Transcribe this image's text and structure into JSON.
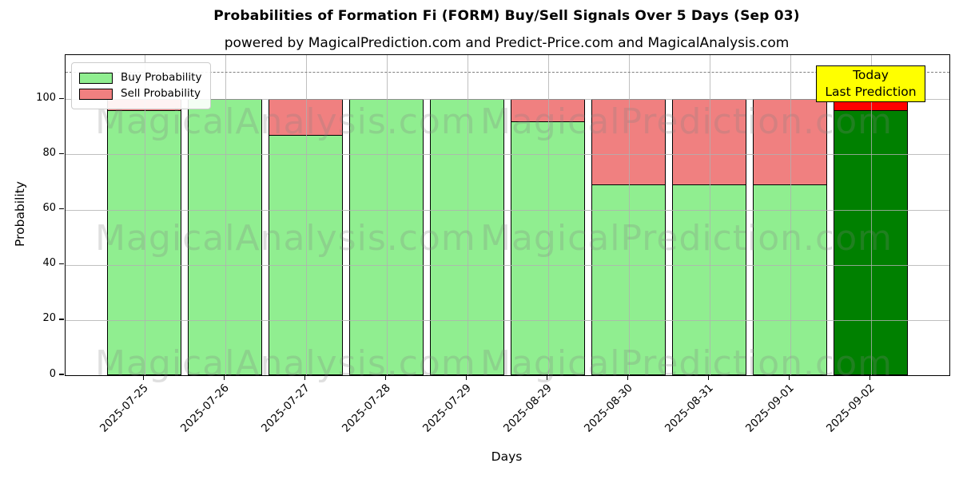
{
  "title": "Probabilities of Formation Fi (FORM) Buy/Sell Signals Over 5 Days (Sep 03)",
  "subtitle": "powered by MagicalPrediction.com and Predict-Price.com and MagicalAnalysis.com",
  "legend": {
    "buy_label": "Buy Probability",
    "sell_label": "Sell Probability",
    "buy_color": "#90ee90",
    "sell_color": "#f08080"
  },
  "annotation": {
    "line1": "Today",
    "line2": "Last Prediction",
    "bg_color": "#ffff00"
  },
  "axes": {
    "ylabel": "Probability",
    "xlabel": "Days",
    "yticks": [
      0,
      20,
      40,
      60,
      80,
      100
    ]
  },
  "watermarks": {
    "left_text": "MagicalAnalysis.com",
    "right_text": "MagicalPrediction.com"
  },
  "chart_data": {
    "type": "bar",
    "stacked": true,
    "title": "Probabilities of Formation Fi (FORM) Buy/Sell Signals Over 5 Days (Sep 03)",
    "xlabel": "Days",
    "ylabel": "Probability",
    "categories": [
      "2025-07-25",
      "2025-07-26",
      "2025-07-27",
      "2025-07-28",
      "2025-07-29",
      "2025-08-29",
      "2025-08-30",
      "2025-08-31",
      "2025-09-01",
      "2025-09-02"
    ],
    "series": [
      {
        "name": "Buy Probability",
        "color": "#90ee90",
        "values": [
          96,
          100,
          87,
          100,
          100,
          92,
          69,
          69,
          69,
          96
        ]
      },
      {
        "name": "Sell Probability",
        "color": "#f08080",
        "values": [
          4,
          0,
          13,
          0,
          0,
          8,
          31,
          31,
          31,
          4
        ]
      }
    ],
    "today_bar": {
      "category": "2025-09-02",
      "buy_color": "#008000",
      "sell_color": "#ff0000"
    },
    "ylim": [
      0,
      116
    ],
    "dashed_line_y": 110,
    "grid": true,
    "legend_position": "upper left"
  }
}
